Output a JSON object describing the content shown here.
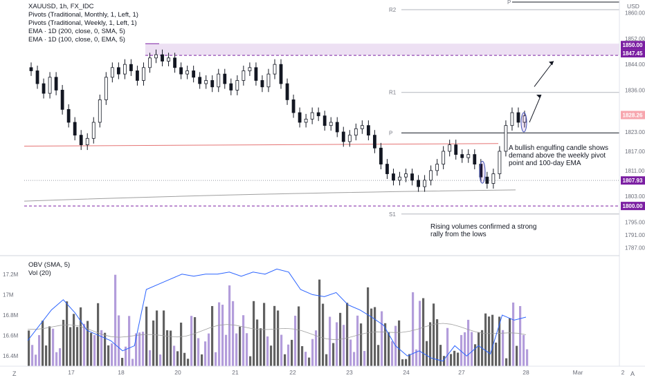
{
  "legend": {
    "symbol": "XAUUSD, 1h, FX_IDC",
    "lines": [
      "Pivots (Traditional, Monthly, 1, Left, 1)",
      "Pivots (Traditional, Weekly, 1, Left, 1)",
      "EMA · 1D (200, close, 0, SMA, 5)",
      "EMA · 1D (100, close, 0, EMA, 5)"
    ]
  },
  "lower_legend": [
    "OBV (SMA, 5)",
    "Vol (20)"
  ],
  "currency": "USD",
  "corner_labels": {
    "bottom_left": "Z",
    "bottom_right": "A"
  },
  "colors": {
    "up_candle": "#131722",
    "down_candle": "#131722",
    "highlight_zone": "#e9d8f0",
    "level_purple": "#7b1fa2",
    "ema100": "#e57373",
    "ema200": "#9e9e9e",
    "obv": "#2962ff",
    "volume_up": "#b39ddb",
    "volume_down": "#616161",
    "price_box": "#f23645"
  },
  "price_boxes": [
    {
      "label": "1850.00",
      "color": "#7b1fa2",
      "value": 1850.0
    },
    {
      "label": "1847.45",
      "color": "#7b1fa2",
      "value": 1847.45
    },
    {
      "label": "1828.26",
      "color": "#f7a6ae",
      "value": 1828.26
    },
    {
      "label": "1807.93",
      "color": "#7b1fa2",
      "value": 1807.93
    },
    {
      "label": "1800.00",
      "color": "#7b1fa2",
      "value": 1800.0
    }
  ],
  "pivot_labels": [
    {
      "label": "R2",
      "value": 1861.0
    },
    {
      "label": "R1",
      "value": 1835.3
    },
    {
      "label": "P",
      "value": 1822.7
    },
    {
      "label": "S1",
      "value": 1797.5
    },
    {
      "label": "P",
      "value": 1864.5
    }
  ],
  "annotations": [
    {
      "lines": [
        "A bullish engulfing candle shows",
        "demand above the weekly pivot",
        "point and 100-day EMA"
      ]
    },
    {
      "lines": [
        "Rising volumes confirmed a strong",
        "rally from the lows"
      ]
    }
  ],
  "chart_data": {
    "type": "candlestick",
    "title": "XAUUSD, 1h, FX_IDC",
    "y_axis_ticks": [
      "1860.00",
      "1852.00",
      "1844.00",
      "1836.00",
      "1823.00",
      "1817.00",
      "1811.00",
      "1803.00",
      "1795.00",
      "1791.00",
      "1787.00"
    ],
    "ylim": [
      1785,
      1864
    ],
    "x_axis_ticks": [
      "17",
      "18",
      "20",
      "21",
      "22",
      "23",
      "24",
      "27",
      "28",
      "Mar",
      "2"
    ],
    "levels": {
      "monthly_R2": 1861.0,
      "weekly_R1": 1835.3,
      "weekly_P": 1822.7,
      "monthly_S1": 1797.5,
      "zone_top": 1850.0,
      "zone_bottom": 1847.45,
      "support_1807_93": 1807.93,
      "support_1800": 1800.0
    },
    "price_close_series": [
      1842,
      1838,
      1835,
      1840,
      1836,
      1830,
      1826,
      1822,
      1819,
      1821,
      1826,
      1833,
      1840,
      1843,
      1841,
      1844,
      1842,
      1839,
      1843,
      1846,
      1847,
      1845,
      1846,
      1843,
      1841,
      1842,
      1840,
      1838,
      1839,
      1837,
      1841,
      1838,
      1836,
      1839,
      1842,
      1843,
      1839,
      1837,
      1841,
      1844,
      1838,
      1833,
      1829,
      1826,
      1827,
      1829,
      1828,
      1825,
      1826,
      1823,
      1820,
      1822,
      1824,
      1825,
      1822,
      1818,
      1813,
      1810,
      1808,
      1809,
      1810,
      1808,
      1806,
      1808,
      1811,
      1813,
      1817,
      1819,
      1816,
      1815,
      1816,
      1813,
      1809,
      1807,
      1810,
      1817,
      1825,
      1829,
      1826,
      1828
    ],
    "volume_axis_ticks": [
      "17.2M",
      "17M",
      "16.8M",
      "16.6M",
      "16.4M"
    ],
    "obv_series": [
      16.55,
      16.7,
      16.85,
      16.95,
      16.82,
      16.65,
      16.6,
      16.55,
      16.45,
      16.5,
      17.05,
      17.1,
      17.15,
      17.2,
      17.18,
      17.2,
      17.2,
      17.22,
      17.18,
      17.22,
      17.2,
      17.25,
      17.22,
      17.05,
      17.0,
      16.98,
      17.02,
      16.9,
      16.85,
      16.78,
      16.7,
      16.5,
      16.4,
      16.45,
      16.38,
      16.35,
      16.5,
      16.4,
      16.5,
      16.42,
      16.8,
      16.75,
      16.78
    ]
  }
}
